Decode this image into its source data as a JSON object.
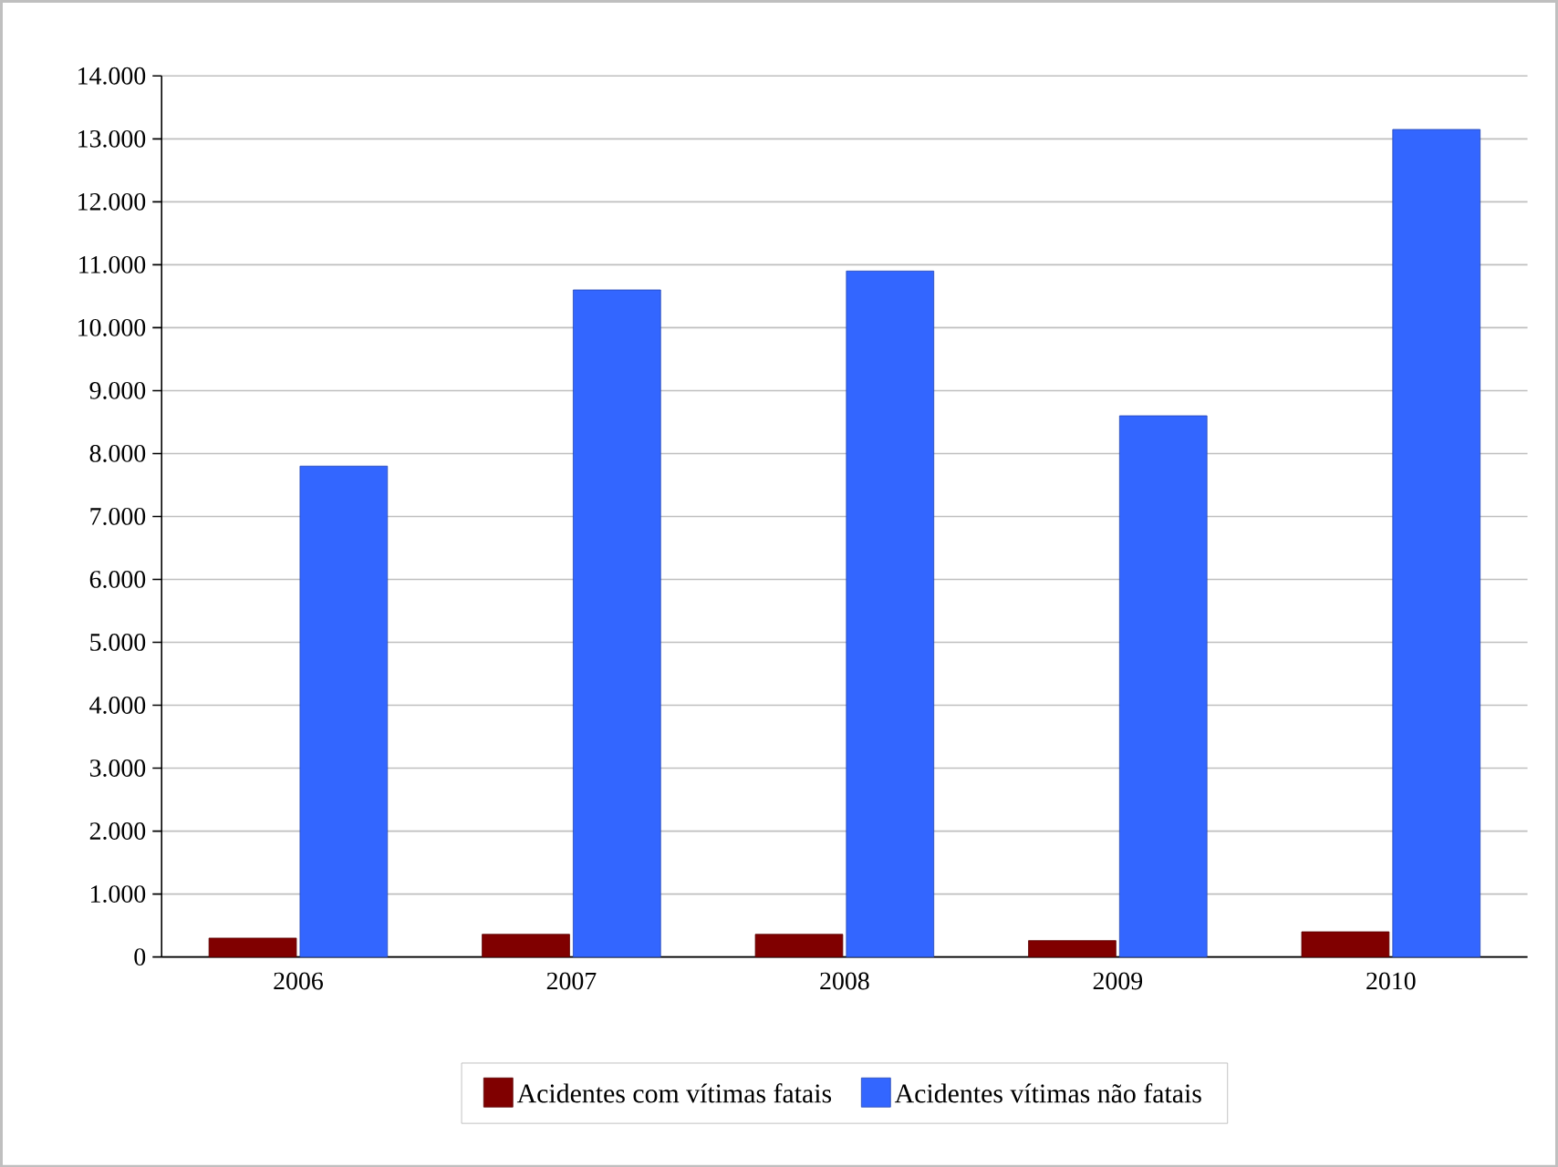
{
  "chart_data": {
    "type": "bar",
    "categories": [
      "2006",
      "2007",
      "2008",
      "2009",
      "2010"
    ],
    "series": [
      {
        "name": "Acidentes com vítimas fatais",
        "color": "#800000",
        "values": [
          300,
          360,
          360,
          260,
          400
        ]
      },
      {
        "name": "Acidentes vítimas não fatais",
        "color": "#3366ff",
        "values": [
          7800,
          10600,
          10900,
          8600,
          13150
        ]
      }
    ],
    "ylim": [
      0,
      14000
    ],
    "yticks": [
      {
        "value": 0,
        "label": "0"
      },
      {
        "value": 1000,
        "label": "1.000"
      },
      {
        "value": 2000,
        "label": "2.000"
      },
      {
        "value": 3000,
        "label": "3.000"
      },
      {
        "value": 4000,
        "label": "4.000"
      },
      {
        "value": 5000,
        "label": "5.000"
      },
      {
        "value": 6000,
        "label": "6.000"
      },
      {
        "value": 7000,
        "label": "7.000"
      },
      {
        "value": 8000,
        "label": "8.000"
      },
      {
        "value": 9000,
        "label": "9.000"
      },
      {
        "value": 10000,
        "label": "10.000"
      },
      {
        "value": 11000,
        "label": "11.000"
      },
      {
        "value": 12000,
        "label": "12.000"
      },
      {
        "value": 13000,
        "label": "13.000"
      },
      {
        "value": 14000,
        "label": "14.000"
      }
    ],
    "grid": "y",
    "legend": "bottom"
  }
}
